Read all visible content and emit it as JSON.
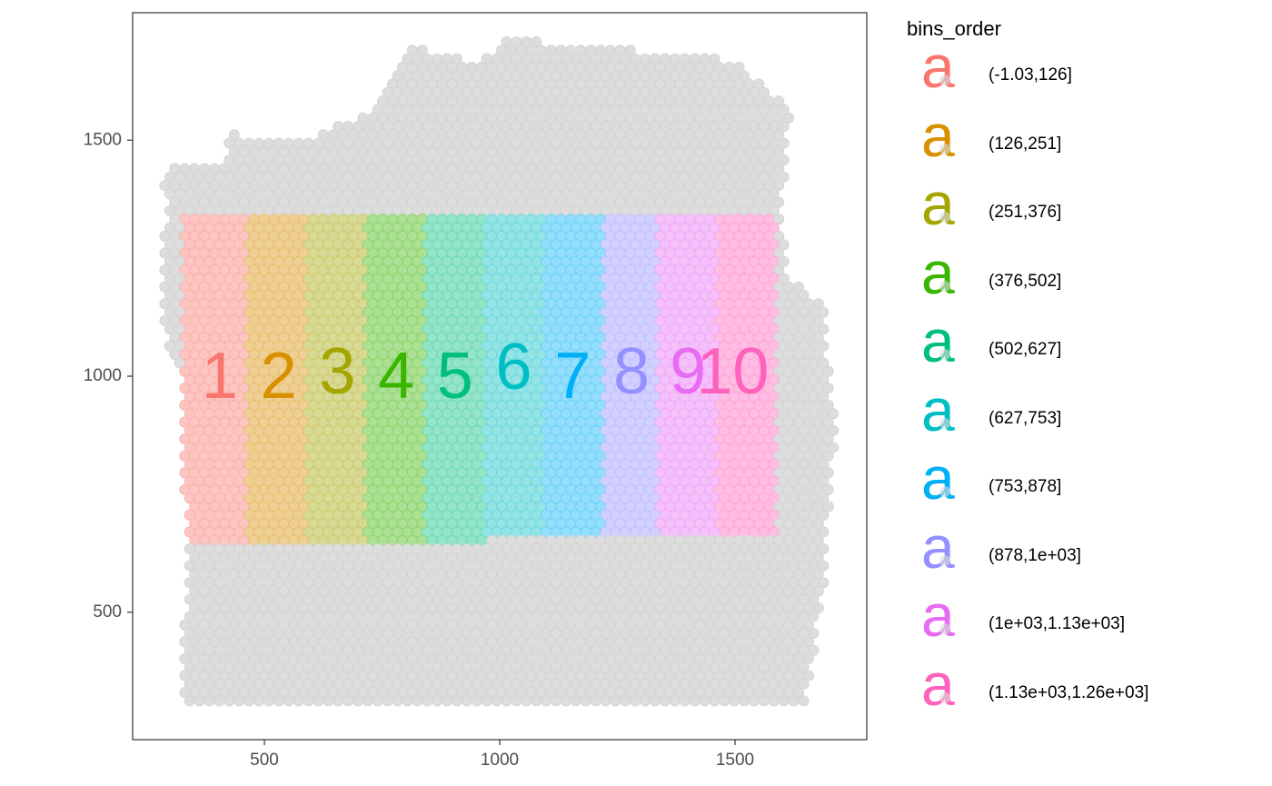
{
  "chart_data": {
    "type": "scatter",
    "title": "",
    "xlabel": "",
    "ylabel": "",
    "xlim": [
      220,
      1780
    ],
    "ylim": [
      230,
      1770
    ],
    "x_ticks": [
      500,
      1000,
      1500
    ],
    "y_ticks": [
      500,
      1000,
      1500
    ],
    "x_tick_labels": [
      "500",
      "1000",
      "1500"
    ],
    "y_tick_labels": [
      "500",
      "1000",
      "1500"
    ],
    "grid": false,
    "background_spot_color": "#dddddd",
    "legend": {
      "title": "bins_order",
      "position": "right",
      "entries": [
        {
          "label": "(-1.03,126]",
          "color": "#F8766D"
        },
        {
          "label": "(126,251]",
          "color": "#D89000"
        },
        {
          "label": "(251,376]",
          "color": "#A3A500"
        },
        {
          "label": "(376,502]",
          "color": "#39B600"
        },
        {
          "label": "(502,627]",
          "color": "#00BF7D"
        },
        {
          "label": "(627,753]",
          "color": "#00BFC4"
        },
        {
          "label": "(753,878]",
          "color": "#00B0F6"
        },
        {
          "label": "(878,1e+03]",
          "color": "#9590FF"
        },
        {
          "label": "(1e+03,1.13e+03]",
          "color": "#E76BF3"
        },
        {
          "label": "(1.13e+03,1.26e+03]",
          "color": "#FF62BC"
        }
      ]
    },
    "bins": [
      {
        "label": "1",
        "x_range": [
          330,
          460
        ],
        "y_range": [
          650,
          1340
        ],
        "label_pos": [
          405,
          990
        ],
        "color": "#F8766D"
      },
      {
        "label": "2",
        "x_range": [
          460,
          590
        ],
        "y_range": [
          650,
          1340
        ],
        "label_pos": [
          530,
          990
        ],
        "color": "#D89000"
      },
      {
        "label": "3",
        "x_range": [
          590,
          715
        ],
        "y_range": [
          650,
          1350
        ],
        "label_pos": [
          655,
          1000
        ],
        "color": "#A3A500"
      },
      {
        "label": "4",
        "x_range": [
          715,
          840
        ],
        "y_range": [
          650,
          1350
        ],
        "label_pos": [
          780,
          990
        ],
        "color": "#39B600"
      },
      {
        "label": "5",
        "x_range": [
          840,
          965
        ],
        "y_range": [
          645,
          1350
        ],
        "label_pos": [
          905,
          990
        ],
        "color": "#00BF7D"
      },
      {
        "label": "6",
        "x_range": [
          965,
          1090
        ],
        "y_range": [
          665,
          1350
        ],
        "label_pos": [
          1030,
          1010
        ],
        "color": "#00BFC4"
      },
      {
        "label": "7",
        "x_range": [
          1090,
          1215
        ],
        "y_range": [
          665,
          1350
        ],
        "label_pos": [
          1155,
          990
        ],
        "color": "#00B0F6"
      },
      {
        "label": "8",
        "x_range": [
          1215,
          1340
        ],
        "y_range": [
          665,
          1345
        ],
        "label_pos": [
          1280,
          1000
        ],
        "color": "#9590FF"
      },
      {
        "label": "9",
        "x_range": [
          1340,
          1465
        ],
        "y_range": [
          665,
          1345
        ],
        "label_pos": [
          1400,
          1000
        ],
        "color": "#E76BF3"
      },
      {
        "label": "10",
        "x_range": [
          1465,
          1590
        ],
        "y_range": [
          665,
          1345
        ],
        "label_pos": [
          1495,
          1000
        ],
        "color": "#FF62BC"
      }
    ]
  }
}
